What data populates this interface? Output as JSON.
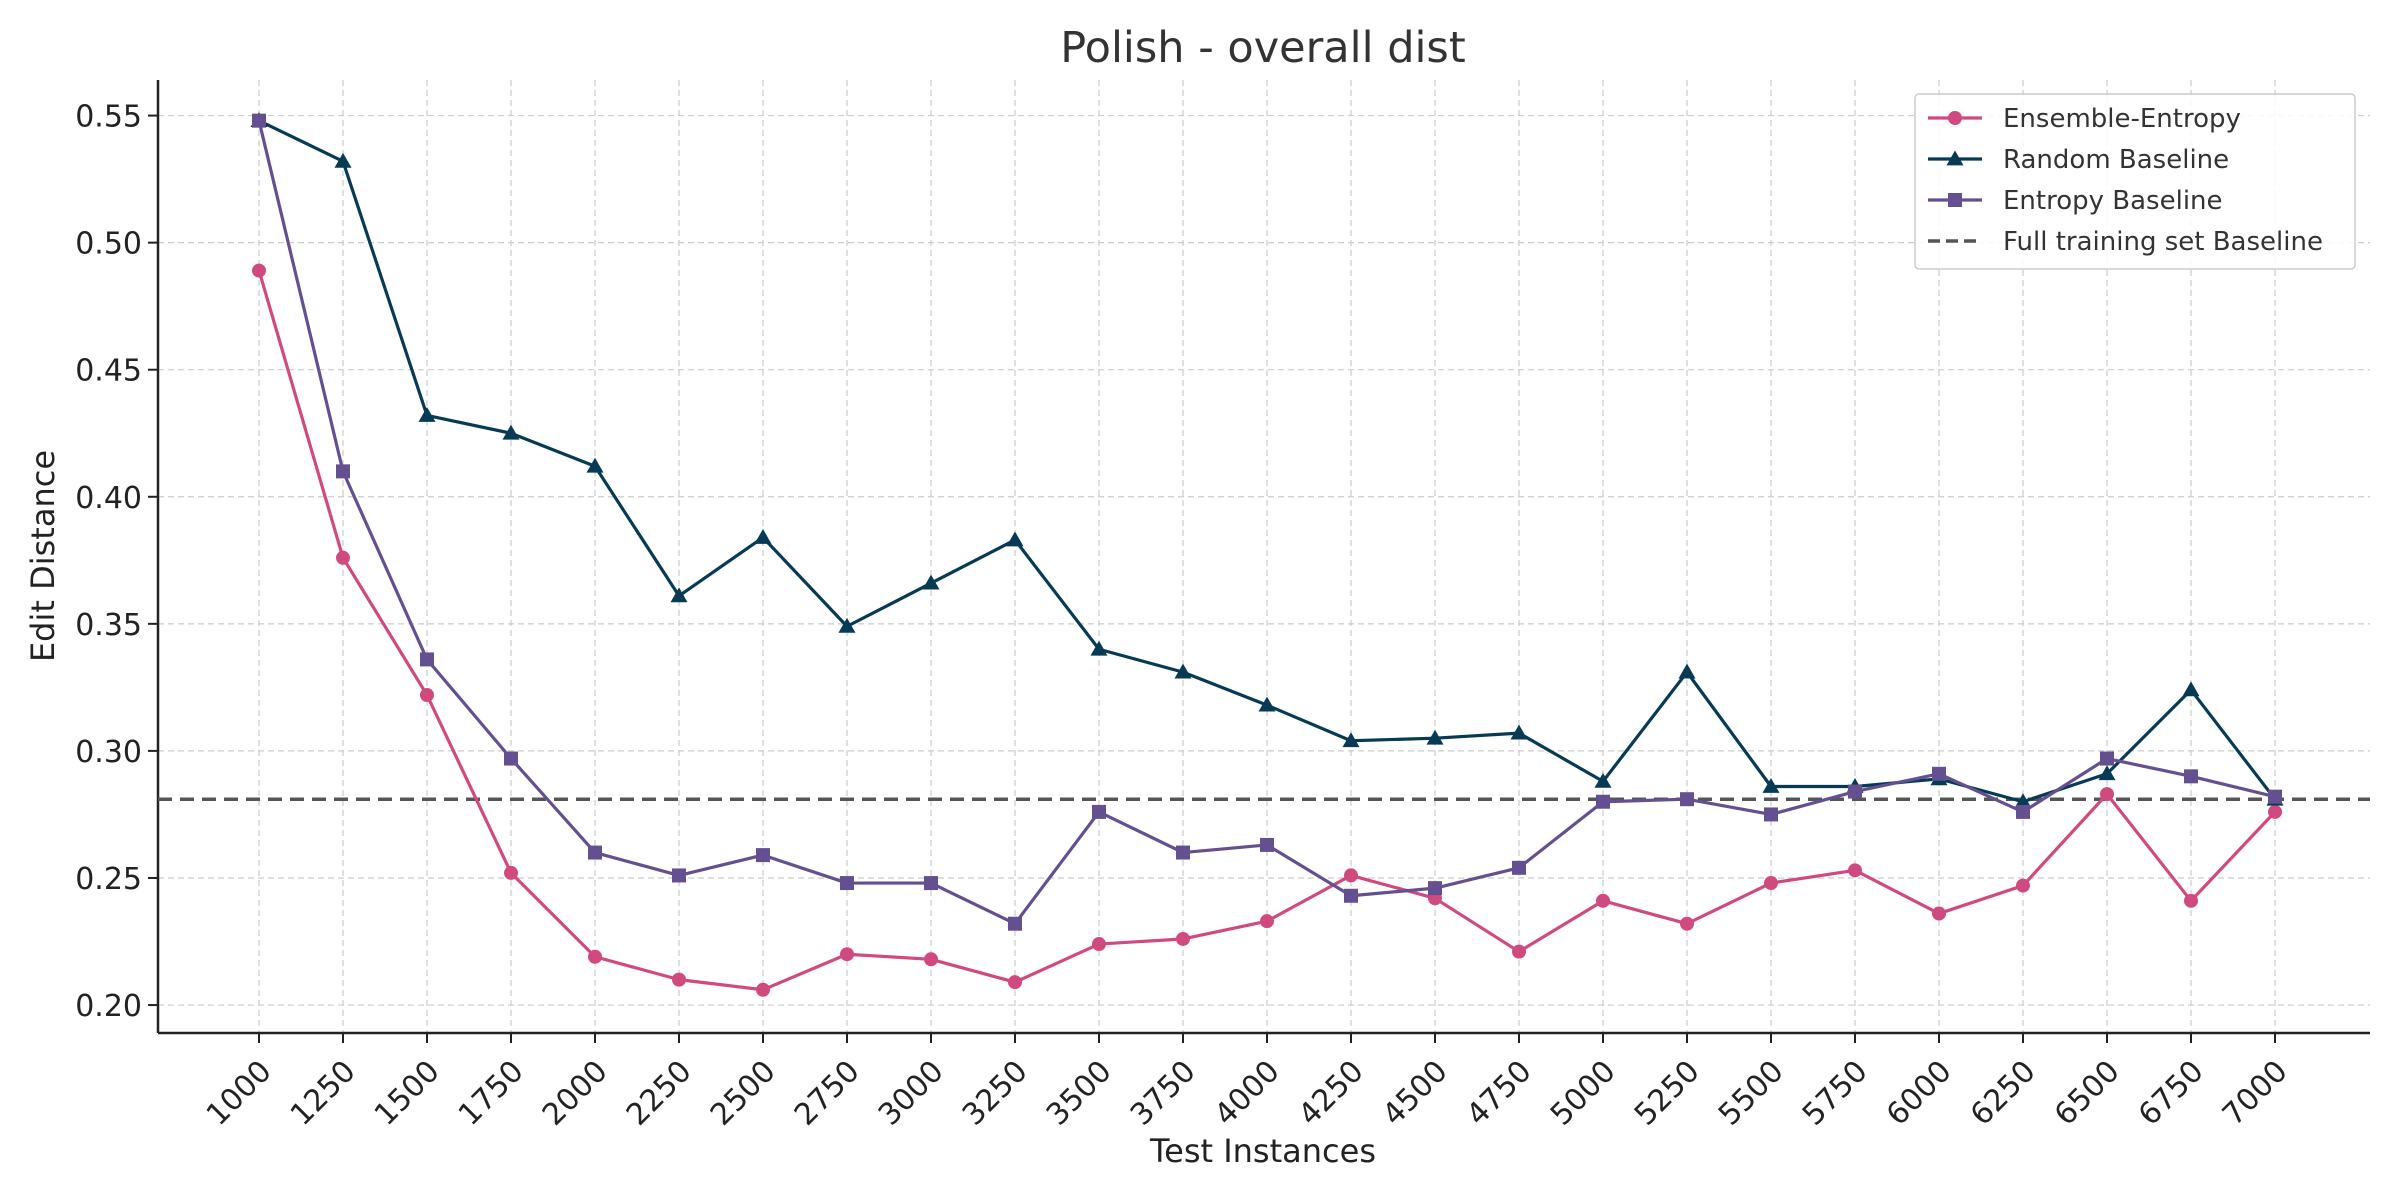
{
  "chart_data": {
    "type": "line",
    "title": "Polish - overall dist",
    "xlabel": "Test Instances",
    "ylabel": "Edit Distance",
    "x": [
      1000,
      1250,
      1500,
      1750,
      2000,
      2250,
      2500,
      2750,
      3000,
      3250,
      3500,
      3750,
      4000,
      4250,
      4500,
      4750,
      5000,
      5250,
      5500,
      5750,
      6000,
      6250,
      6500,
      6750,
      7000
    ],
    "x_tick_labels": [
      "1000",
      "1250",
      "1500",
      "1750",
      "2000",
      "2250",
      "2500",
      "2750",
      "3000",
      "3250",
      "3500",
      "3750",
      "4000",
      "4250",
      "4500",
      "4750",
      "5000",
      "5250",
      "5500",
      "5750",
      "6000",
      "6250",
      "6500",
      "6750",
      "7000"
    ],
    "y_ticks": [
      0.2,
      0.25,
      0.3,
      0.35,
      0.4,
      0.45,
      0.5,
      0.55
    ],
    "y_tick_labels": [
      "0.20",
      "0.25",
      "0.30",
      "0.35",
      "0.40",
      "0.45",
      "0.50",
      "0.55"
    ],
    "ylim": [
      0.189,
      0.564
    ],
    "grid": true,
    "legend_position": "top-right",
    "series": [
      {
        "name": "Ensemble-Entropy",
        "color": "#d04a80",
        "marker": "circle",
        "values": [
          0.489,
          0.376,
          0.322,
          0.252,
          0.219,
          0.21,
          0.206,
          0.22,
          0.218,
          0.209,
          0.224,
          0.226,
          0.233,
          0.251,
          0.242,
          0.221,
          0.241,
          0.232,
          0.248,
          0.253,
          0.236,
          0.247,
          0.283,
          0.241,
          0.276
        ]
      },
      {
        "name": "Random Baseline",
        "color": "#063a55",
        "marker": "triangle",
        "values": [
          0.548,
          0.532,
          0.432,
          0.425,
          0.412,
          0.361,
          0.384,
          0.349,
          0.366,
          0.383,
          0.34,
          0.331,
          0.318,
          0.304,
          0.305,
          0.307,
          0.288,
          0.331,
          0.286,
          0.286,
          0.289,
          0.28,
          0.291,
          0.324,
          0.281
        ]
      },
      {
        "name": "Entropy Baseline",
        "color": "#645090",
        "marker": "square",
        "values": [
          0.548,
          0.41,
          0.336,
          0.297,
          0.26,
          0.251,
          0.259,
          0.248,
          0.248,
          0.232,
          0.276,
          0.26,
          0.263,
          0.243,
          0.246,
          0.254,
          0.28,
          0.281,
          0.275,
          0.284,
          0.291,
          0.276,
          0.297,
          0.29,
          0.282
        ]
      }
    ],
    "baseline": {
      "name": "Full training set Baseline",
      "value": 0.281,
      "color": "#555555",
      "style": "dashed"
    }
  }
}
